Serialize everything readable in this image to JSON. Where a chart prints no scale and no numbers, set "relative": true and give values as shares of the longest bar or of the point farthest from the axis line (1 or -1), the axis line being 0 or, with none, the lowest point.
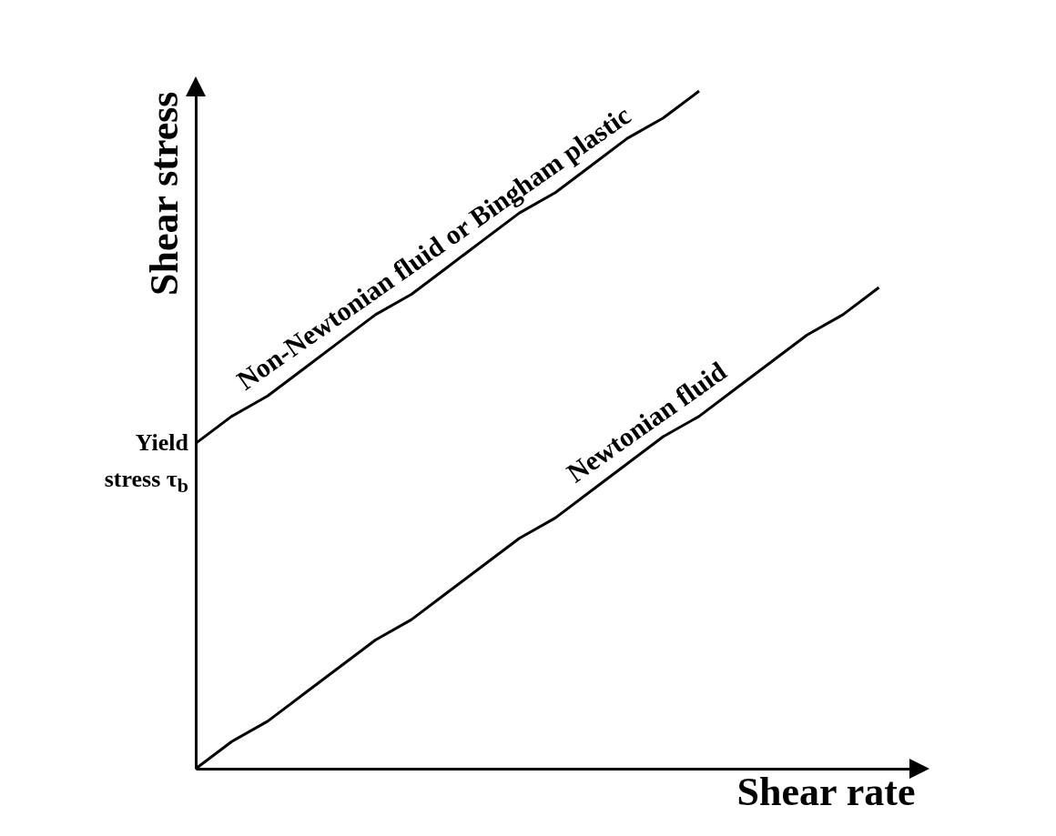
{
  "chart_data": {
    "type": "line",
    "relative": true,
    "xlabel": "Shear rate",
    "ylabel": "Shear stress",
    "tick_labels": false,
    "grid": false,
    "legend": false,
    "marker": "none",
    "line_style": "solid",
    "categories": [
      null,
      null,
      null,
      null,
      null,
      null,
      null,
      null,
      null,
      null,
      null,
      null,
      null,
      null,
      null,
      null,
      null,
      null,
      null,
      null
    ],
    "annotations": [
      "Yield stress τ$_{b}$"
    ],
    "series": [
      {
        "name": "Non-Newtonian fluid or Bingham plastic",
        "color": "#000000",
        "values": [
          0.48,
          0.52,
          0.55,
          0.59,
          0.63,
          0.67,
          0.7,
          0.74,
          0.78,
          0.82,
          0.85,
          0.89,
          0.93,
          0.96,
          1.0,
          null,
          null,
          null,
          null,
          null
        ]
      },
      {
        "name": "Newtonian fluid",
        "color": "#000000",
        "values": [
          0,
          0.04,
          0.07,
          0.11,
          0.15,
          0.19,
          0.22,
          0.26,
          0.3,
          0.34,
          0.37,
          0.41,
          0.45,
          0.49,
          0.52,
          0.56,
          0.6,
          0.64,
          0.67,
          0.71
        ]
      }
    ]
  }
}
